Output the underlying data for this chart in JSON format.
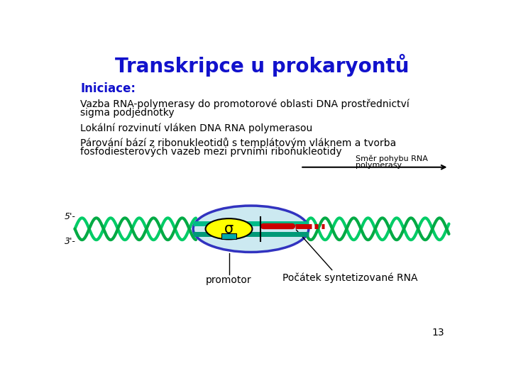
{
  "title": "Transkripce u prokaryontů",
  "title_color": "#1111CC",
  "title_fontsize": 20,
  "bg_color": "#ffffff",
  "text_color": "#000000",
  "blue_heading_color": "#1111CC",
  "heading": "Iniciace:",
  "line1": "Vazba RNA-polymerasy do promotorové oblasti DNA prostřednictví",
  "line1b": "sigma podjednotky",
  "line2": "Lokální rozvinutí vláken DNA RNA polymerasou",
  "line3": "Párování bází z ribonukleotidů s templátovým vláknem a tvorba",
  "line3b": "fosfodiesterových vazeb mezi prvními ribonukleotidy",
  "arrow_label1": "Směr pohybu RNA",
  "arrow_label2": "polymerasy",
  "promotor_label": "promotor",
  "rna_label": "Počátek syntetizované RNA",
  "sigma_label": "σ",
  "page_number": "13",
  "dna_color": "#00CC66",
  "dna_color2": "#00AA44",
  "ellipse_fill": "#C8E8F0",
  "ellipse_edge": "#2222BB",
  "sigma_fill": "#FFFF00",
  "sigma_edge": "#000000",
  "rna_color": "#CC0000",
  "inner_strand1": "#00BB88",
  "inner_strand2": "#009977"
}
